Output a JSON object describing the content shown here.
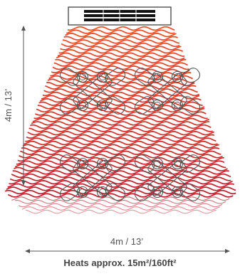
{
  "diagram": {
    "height_label": "4m / 13’",
    "width_label": "4m / 13’",
    "coverage_caption": "Heats approx. 15m²/160ft²"
  },
  "icons": {
    "heater": "heater-icon",
    "heat_waves": "heat-waves-icon",
    "chairs": "chair-icon",
    "table": "table-icon"
  },
  "colors": {
    "wave_top": "#ee4d24",
    "wave_bottom": "#c01a2c",
    "line": "#555555",
    "text": "#444444"
  }
}
